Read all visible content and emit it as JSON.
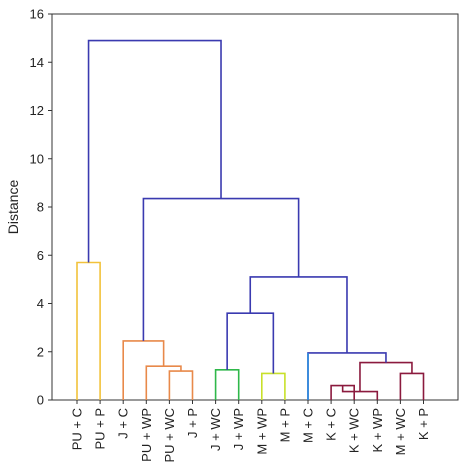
{
  "chart_data": {
    "type": "dendrogram",
    "title": "",
    "xlabel": "",
    "ylabel": "Distance",
    "ylim": [
      0,
      16
    ],
    "yticks": [
      0,
      2,
      4,
      6,
      8,
      10,
      12,
      14,
      16
    ],
    "grid": false,
    "leaves": [
      "PU + C",
      "PU + P",
      "J + C",
      "PU + WP",
      "PU + WC",
      "J + P",
      "J + WC",
      "J + WP",
      "M + WP",
      "M + P",
      "M + C",
      "K + C",
      "K + WC",
      "K + WP",
      "M + WC",
      "K + P"
    ],
    "merges": [
      {
        "left": "leaf:11",
        "right": "leaf:12",
        "height": 0.6,
        "color": "#8b1a3e"
      },
      {
        "left": "node:0",
        "right": "leaf:13",
        "height": 0.35,
        "color": "#8b1a3e"
      },
      {
        "left": "leaf:14",
        "right": "leaf:15",
        "height": 1.1,
        "color": "#8b1a3e"
      },
      {
        "left": "node:1",
        "right": "node:2",
        "height": 1.55,
        "color": "#8b1a3e"
      },
      {
        "left": "leaf:10",
        "right": "node:3",
        "height": 1.95,
        "color": "#3a3ab0"
      },
      {
        "left": "leaf:8",
        "right": "leaf:9",
        "height": 1.1,
        "color": "#c8e02a"
      },
      {
        "left": "leaf:6",
        "right": "leaf:7",
        "height": 1.25,
        "color": "#2fb84a"
      },
      {
        "left": "node:6",
        "right": "node:5",
        "height": 3.6,
        "color": "#3a3ab0"
      },
      {
        "left": "node:7",
        "right": "node:4",
        "height": 5.1,
        "color": "#3a3ab0"
      },
      {
        "left": "leaf:4",
        "right": "leaf:5",
        "height": 1.2,
        "color": "#e8894a"
      },
      {
        "left": "leaf:3",
        "right": "node:9",
        "height": 1.4,
        "color": "#e8894a"
      },
      {
        "left": "leaf:2",
        "right": "node:10",
        "height": 2.45,
        "color": "#e8894a"
      },
      {
        "left": "node:11",
        "right": "node:8",
        "height": 8.35,
        "color": "#3a3ab0"
      },
      {
        "left": "leaf:0",
        "right": "leaf:1",
        "height": 5.7,
        "color": "#f2c23a"
      },
      {
        "left": "node:13",
        "right": "node:12",
        "height": 14.9,
        "color": "#3a3ab0"
      }
    ],
    "leaf_stubs": [
      {
        "leaf": "leaf:10",
        "color": "#2a8ee0"
      }
    ]
  }
}
